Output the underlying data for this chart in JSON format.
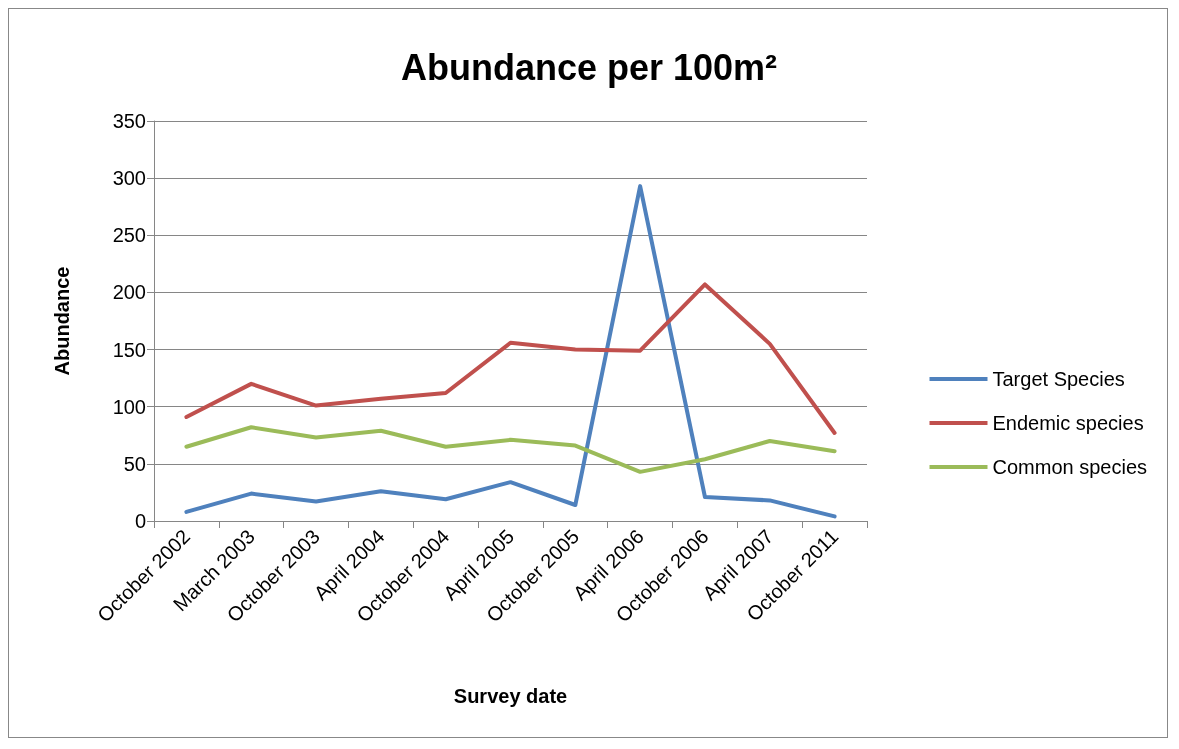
{
  "chart_data": {
    "type": "line",
    "title": "Abundance per 100m²",
    "xlabel": "Survey date",
    "ylabel": "Abundance",
    "categories": [
      "October 2002",
      "March 2003",
      "October 2003",
      "April 2004",
      "October 2004",
      "April 2005",
      "October 2005",
      "April 2006",
      "October 2006",
      "April 2007",
      "October 2011"
    ],
    "series": [
      {
        "name": "Target Species",
        "color": "#4f81bd",
        "values": [
          8,
          24,
          17,
          26,
          19,
          34,
          14,
          293,
          21,
          18,
          4
        ]
      },
      {
        "name": "Endemic species",
        "color": "#c0504d",
        "values": [
          91,
          120,
          101,
          107,
          112,
          156,
          150,
          149,
          207,
          155,
          77
        ]
      },
      {
        "name": "Common species",
        "color": "#9bbb59",
        "values": [
          65,
          82,
          73,
          79,
          65,
          71,
          66,
          43,
          54,
          70,
          61
        ]
      }
    ],
    "ylim": [
      0,
      350
    ],
    "yticks": [
      0,
      50,
      100,
      150,
      200,
      250,
      300,
      350
    ],
    "grid": "y",
    "legend": "right",
    "marker": "none",
    "line_style": "solid"
  }
}
